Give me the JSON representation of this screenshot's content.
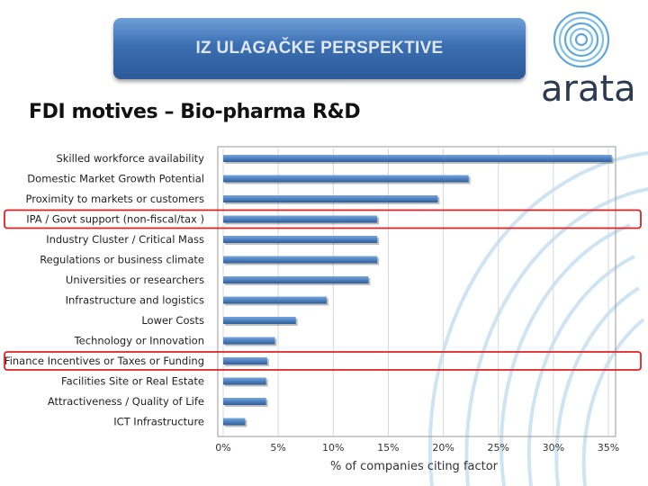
{
  "header": {
    "banner_title": "IZ ULAGAČKE PERSPEKTIVE",
    "page_title": "FDI motives – Bio-pharma R&D",
    "logo_text": "arata",
    "banner_color": "#3b6fb2"
  },
  "chart_data": {
    "type": "bar",
    "orientation": "horizontal",
    "categories": [
      "Skilled workforce availability",
      "Domestic Market Growth Potential",
      "Proximity to markets or customers",
      "IPA / Govt support  (non-fiscal/tax )",
      "Industry Cluster / Critical Mass",
      "Regulations or business climate",
      "Universities or researchers",
      "Infrastructure and logistics",
      "Lower Costs",
      "Technology or Innovation",
      "Finance Incentives or Taxes or Funding",
      "Facilities Site or Real Estate",
      "Attractiveness / Quality of Life",
      "ICT Infrastructure"
    ],
    "values": [
      35.3,
      22.3,
      19.5,
      14.0,
      14.0,
      14.0,
      13.2,
      9.4,
      6.6,
      4.7,
      4.0,
      3.9,
      3.9,
      2.0
    ],
    "xlabel": "% of companies citing factor",
    "xticks": [
      "0%",
      "5%",
      "10%",
      "15%",
      "20%",
      "25%",
      "30%",
      "35%"
    ],
    "xlim": [
      0,
      35
    ],
    "highlighted": [
      "IPA / Govt support  (non-fiscal/tax )",
      "Finance Incentives or Taxes or Funding"
    ],
    "bar_color": "#4a7ebb",
    "highlight_color": "#e02020",
    "grid": true
  }
}
